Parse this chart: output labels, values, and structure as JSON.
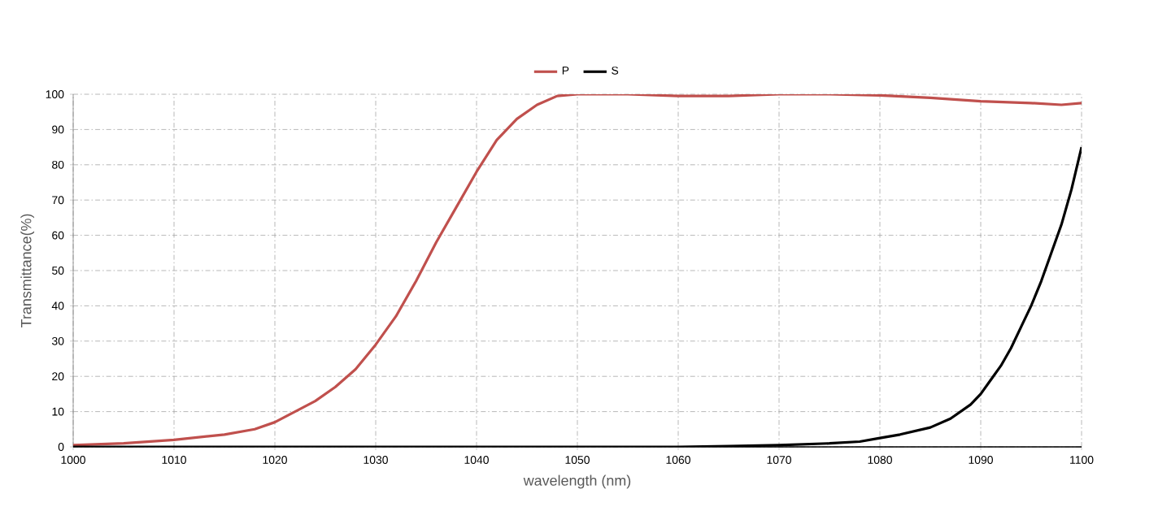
{
  "chart_data": {
    "type": "line",
    "xlabel": "wavelength (nm)",
    "ylabel": "Transmittance(%)",
    "xlim": [
      1000,
      1100
    ],
    "xticks": [
      1000,
      1010,
      1020,
      1030,
      1040,
      1050,
      1060,
      1070,
      1080,
      1090,
      1100
    ],
    "ylim": [
      0,
      100
    ],
    "yticks": [
      0,
      10,
      20,
      30,
      40,
      50,
      60,
      70,
      80,
      90,
      100
    ],
    "grid": true,
    "legend": "top",
    "marker": "none",
    "line_style": "solid",
    "series": [
      {
        "name": "P",
        "color": "#c0504d",
        "x": [
          1000,
          1005,
          1010,
          1015,
          1018,
          1020,
          1022,
          1024,
          1026,
          1028,
          1030,
          1032,
          1034,
          1036,
          1038,
          1040,
          1042,
          1044,
          1046,
          1048,
          1050,
          1055,
          1060,
          1065,
          1070,
          1075,
          1080,
          1085,
          1090,
          1095,
          1098,
          1100
        ],
        "values": [
          0.5,
          1,
          2,
          3.5,
          5,
          7,
          10,
          13,
          17,
          22,
          29,
          37,
          47,
          58,
          68,
          78,
          87,
          93,
          97,
          99.5,
          100,
          100,
          99.5,
          99.5,
          100,
          100,
          99.7,
          99,
          98,
          97.5,
          97,
          97.5
        ]
      },
      {
        "name": "S",
        "color": "#000000",
        "x": [
          1000,
          1060,
          1065,
          1070,
          1075,
          1078,
          1080,
          1082,
          1085,
          1087,
          1089,
          1090,
          1091,
          1092,
          1093,
          1094,
          1095,
          1096,
          1097,
          1098,
          1099,
          1100
        ],
        "values": [
          0,
          0,
          0.2,
          0.5,
          1,
          1.5,
          2.5,
          3.5,
          5.5,
          8,
          12,
          15,
          19,
          23,
          28,
          34,
          40,
          47,
          55,
          63,
          73,
          85
        ]
      }
    ]
  }
}
